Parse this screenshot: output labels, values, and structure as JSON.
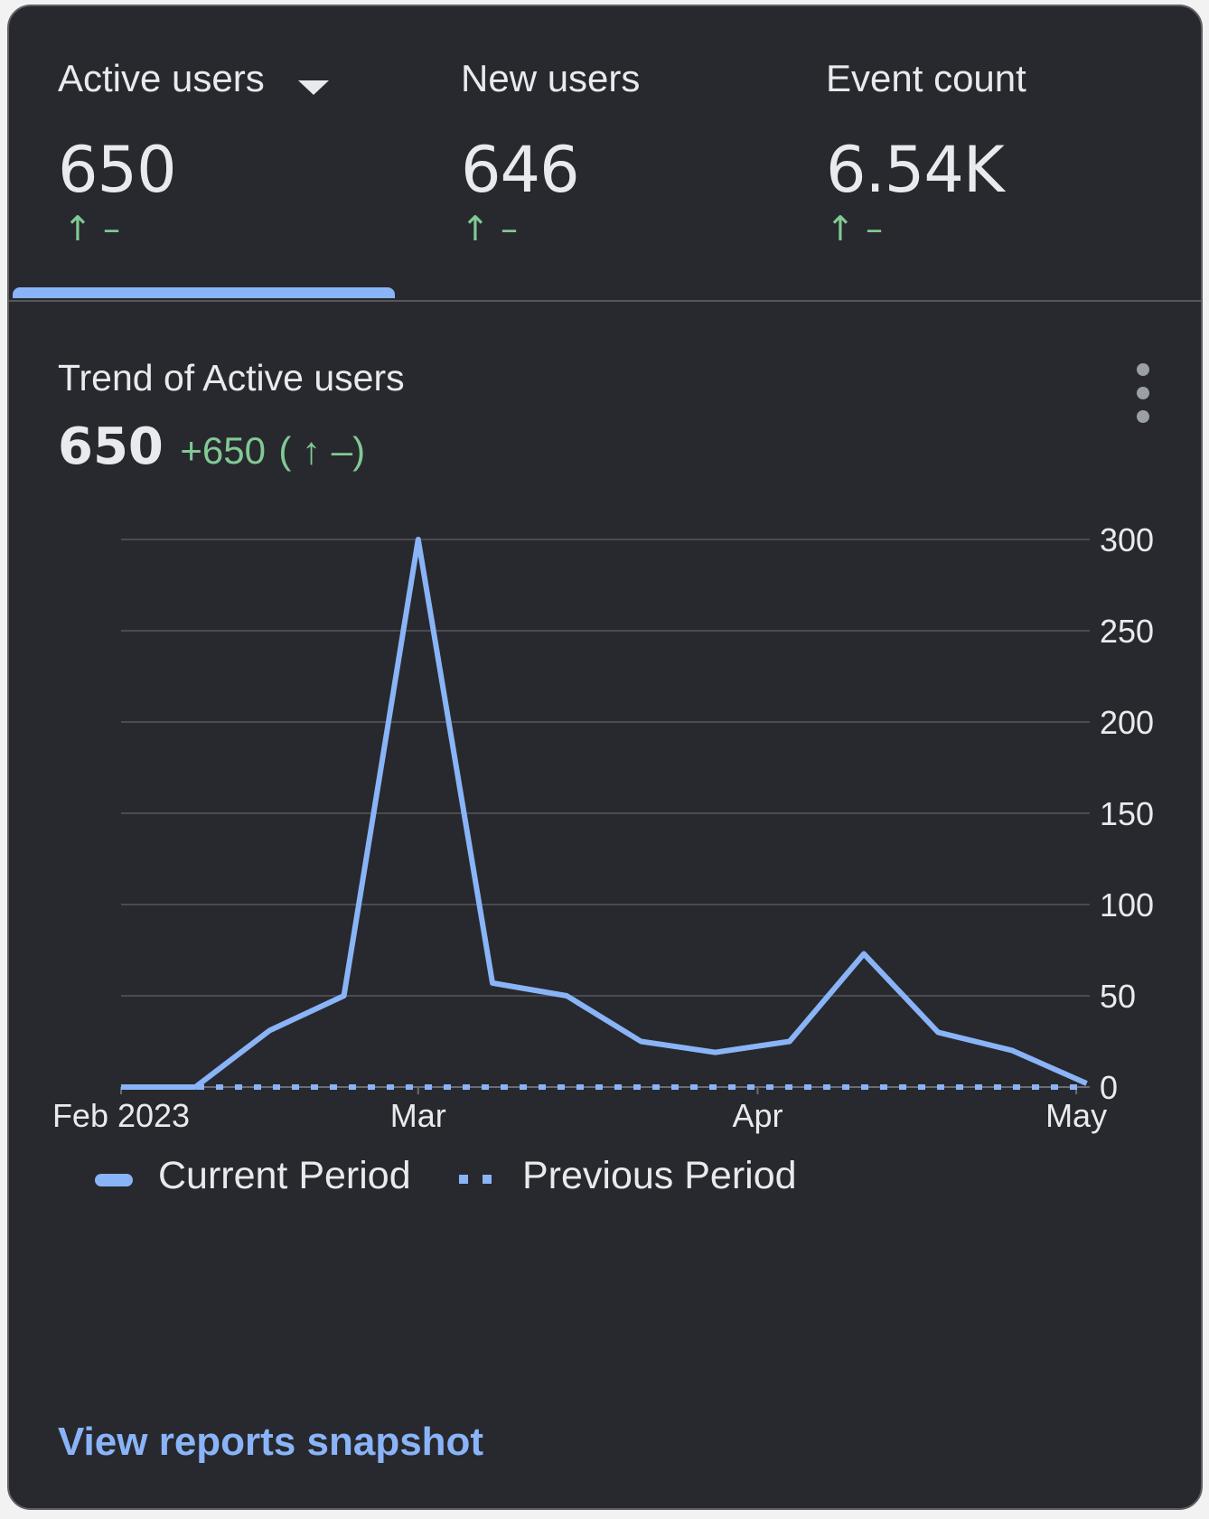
{
  "metric_tabs": [
    {
      "label": "Active users",
      "value": "650",
      "change_arrow": "↑",
      "change_text": "–",
      "selected": true,
      "has_dropdown": true
    },
    {
      "label": "New users",
      "value": "646",
      "change_arrow": "↑",
      "change_text": "–",
      "selected": false
    },
    {
      "label": "Event count",
      "value": "6.54K",
      "change_arrow": "↑",
      "change_text": "–",
      "selected": false
    }
  ],
  "trend": {
    "title": "Trend of Active users",
    "value": "650",
    "delta": "+650",
    "change_paren": "( ↑ –)",
    "menu_icon": "more-vert-icon"
  },
  "colors": {
    "background": "#28292e",
    "line": "#8ab4f8",
    "positive": "#81c995",
    "text": "#e8eaed",
    "grid": "#4a4c51"
  },
  "chart_data": {
    "type": "line",
    "x_tick_labels": [
      "Feb 2023",
      "Mar",
      "Apr",
      "May"
    ],
    "x": [
      "2023-02-01",
      "2023-02-08",
      "2023-02-15",
      "2023-02-22",
      "2023-03-01",
      "2023-03-08",
      "2023-03-15",
      "2023-03-22",
      "2023-03-29",
      "2023-04-05",
      "2023-04-12",
      "2023-04-19",
      "2023-04-26",
      "2023-05-03"
    ],
    "series": [
      {
        "name": "Current Period",
        "style": "solid",
        "values": [
          0,
          0,
          31,
          50,
          300,
          57,
          50,
          25,
          19,
          25,
          73,
          30,
          20,
          2
        ]
      },
      {
        "name": "Previous Period",
        "style": "dashed",
        "values": [
          0,
          0,
          0,
          0,
          0,
          0,
          0,
          0,
          0,
          0,
          0,
          0,
          0,
          0
        ]
      }
    ],
    "y_ticks": [
      "300",
      "250",
      "200",
      "150",
      "100",
      "50",
      "0"
    ],
    "ylim": [
      0,
      300
    ],
    "grid": true,
    "y_axis_position": "right",
    "legend_position": "bottom"
  },
  "footer": {
    "link_label": "View reports snapshot"
  }
}
